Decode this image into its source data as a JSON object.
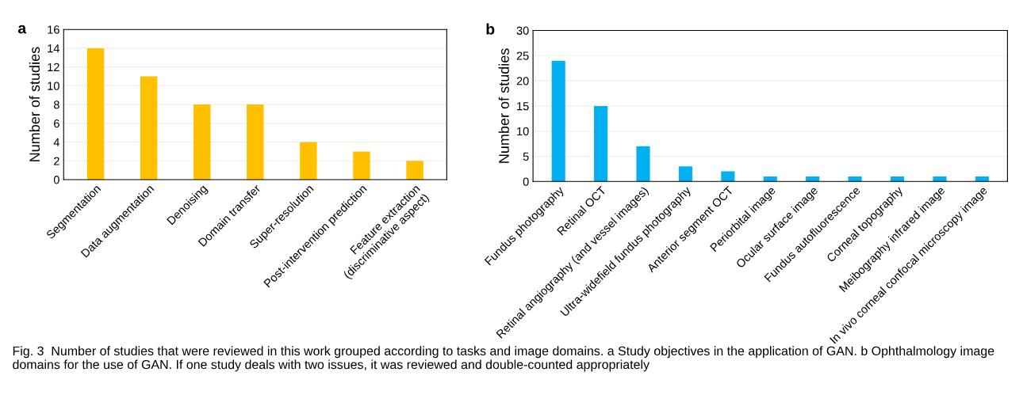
{
  "chart_data": [
    {
      "type": "bar",
      "title": "a",
      "ylabel": "Number of studies",
      "categories": [
        "Segmentation",
        "Data augmentation",
        "Denoising",
        "Domain transfer",
        "Super-resolution",
        "Post-intervention prediction",
        "Feature extraction\n(discriminative aspect)"
      ],
      "values": [
        14,
        11,
        8,
        8,
        4,
        3,
        2
      ],
      "color": "#ffc000",
      "ylim": [
        0,
        16
      ],
      "yticks": [
        0,
        2,
        4,
        6,
        8,
        10,
        12,
        14,
        16
      ],
      "grid": "y",
      "annotations": [
        "Fig. 3  Number of studies that were reviewed in this work grouped according to tasks and image domains. a Study objectives in the application of GAN. b Ophthalmology image domains for the use of GAN. If one study deals with two issues, it was reviewed and double-counted appropriately"
      ]
    },
    {
      "type": "bar",
      "title": "b",
      "ylabel": "Number of studies",
      "categories": [
        "Fundus photography",
        "Retinal OCT",
        "Retinal angiography (and vessel images)",
        "Ultra-widefield fundus photography",
        "Anterior segment OCT",
        "Periorbital image",
        "Ocular surface image",
        "Fundus autofluorescence",
        "Corneal topography",
        "Meibography infrared image",
        "In vivo corneal confocal microscopy image"
      ],
      "values": [
        24,
        15,
        7,
        3,
        2,
        1,
        1,
        1,
        1,
        1,
        1
      ],
      "color": "#00b0f0",
      "ylim": [
        0,
        30
      ],
      "yticks": [
        0,
        5,
        10,
        15,
        20,
        25,
        30
      ],
      "grid": "y"
    }
  ]
}
